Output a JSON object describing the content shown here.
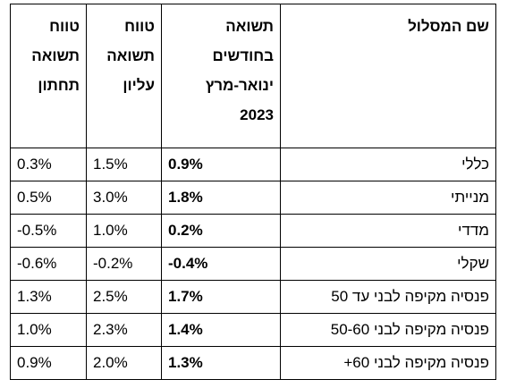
{
  "table": {
    "headers": {
      "name": "שם המסלול",
      "return_line1": "תשואה",
      "return_line2": "בחודשים",
      "return_line3": "ינואר-מרץ",
      "return_line4": "2023",
      "upper_line1": "טווח",
      "upper_line2": "תשואה",
      "upper_line3": "עליון",
      "lower_line1": "טווח",
      "lower_line2": "תשואה",
      "lower_line3": "תחתון"
    },
    "rows": [
      {
        "name": "כללי",
        "return": "0.9%",
        "upper": "1.5%",
        "lower": "0.3%"
      },
      {
        "name": "מנייתי",
        "return": "1.8%",
        "upper": "3.0%",
        "lower": "0.5%"
      },
      {
        "name": "מדדי",
        "return": "0.2%",
        "upper": "1.0%",
        "lower": "-0.5%"
      },
      {
        "name": "שקלי",
        "return": "-0.4%",
        "upper": "-0.2%",
        "lower": "-0.6%"
      },
      {
        "name": "פנסיה מקיפה לבני עד 50",
        "return": "1.7%",
        "upper": "2.5%",
        "lower": "1.3%"
      },
      {
        "name": "פנסיה מקיפה לבני 50-60",
        "return": "1.4%",
        "upper": "2.3%",
        "lower": "1.0%"
      },
      {
        "name": "פנסיה מקיפה לבני 60+",
        "return": "1.3%",
        "upper": "2.0%",
        "lower": "0.9%"
      }
    ]
  }
}
